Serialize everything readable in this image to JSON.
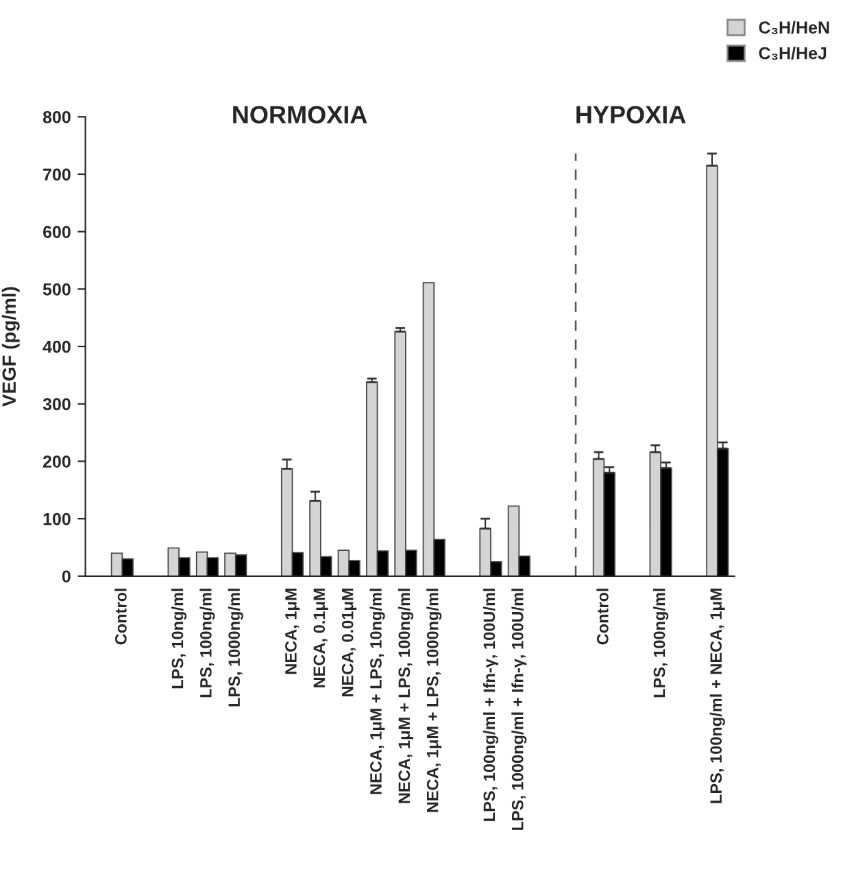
{
  "chart_data": {
    "type": "bar",
    "ylabel": "VEGF (pg/ml)",
    "categories": [
      "Control",
      null,
      "LPS, 10ng/ml",
      "LPS, 100ng/ml",
      "LPS, 1000ng/ml",
      null,
      "NECA, 1μM",
      "NECA, 0.1μM",
      "NECA, 0.01μM",
      "NECA, 1μM + LPS, 10ng/ml",
      "NECA, 1μM + LPS, 100ng/ml",
      "NECA, 1μM + LPS, 1000ng/ml",
      null,
      "LPS, 100ng/ml + Ifn-γ, 100U/ml",
      "LPS, 1000ng/ml + Ifn-γ, 100U/ml",
      null,
      null,
      "Control",
      null,
      "LPS, 100ng/ml",
      null,
      "LPS, 100ng/ml + NECA, 1μM"
    ],
    "series": [
      {
        "name": "C₃H/HeN",
        "color": "#d4d4d4",
        "values": [
          40,
          null,
          49,
          42,
          40,
          null,
          187,
          131,
          45,
          338,
          426,
          511,
          null,
          83,
          122,
          null,
          null,
          204,
          null,
          216,
          null,
          715
        ],
        "errors": [
          null,
          null,
          null,
          null,
          null,
          null,
          [
            187,
            203
          ],
          [
            131,
            147
          ],
          null,
          [
            338,
            344
          ],
          [
            426,
            432
          ],
          null,
          null,
          [
            83,
            100
          ],
          null,
          null,
          null,
          [
            204,
            216
          ],
          null,
          [
            216,
            228
          ],
          null,
          [
            715,
            736
          ]
        ]
      },
      {
        "name": "C₃H/HeJ",
        "color": "#000000",
        "values": [
          30,
          null,
          32,
          32,
          37,
          null,
          41,
          34,
          27,
          44,
          45,
          64,
          null,
          25,
          35,
          null,
          null,
          180,
          null,
          188,
          null,
          222
        ],
        "errors": [
          null,
          null,
          null,
          null,
          null,
          null,
          null,
          null,
          null,
          null,
          null,
          null,
          null,
          null,
          null,
          null,
          null,
          [
            180,
            190
          ],
          null,
          [
            188,
            198
          ],
          null,
          [
            222,
            233
          ]
        ]
      }
    ],
    "ylim": [
      0,
      800
    ],
    "yticks": [
      0,
      100,
      200,
      300,
      400,
      500,
      600,
      700,
      800
    ],
    "annotations": [
      "NORMOXIA",
      "HYPOXIA"
    ],
    "legend": "top right"
  }
}
